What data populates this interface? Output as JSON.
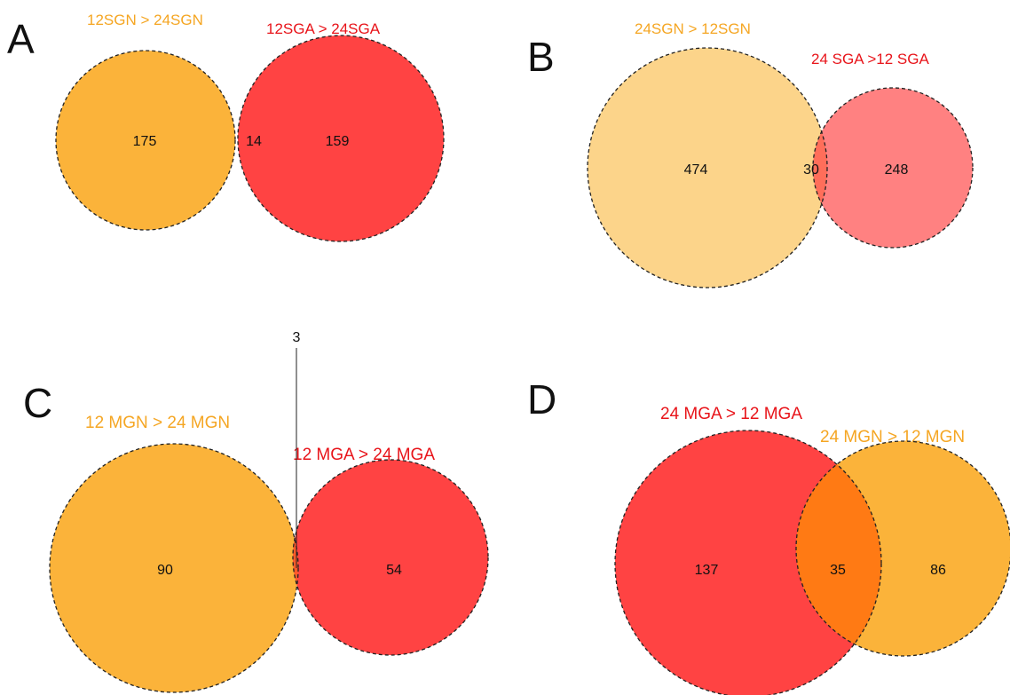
{
  "colors": {
    "orange": "#FBB33A",
    "red": "#FF4343",
    "orange_overlap": "#FF5B2A",
    "light_orange": "#FCD48A",
    "pink": "#FF8181",
    "pink_overlap": "#FF6E5A",
    "label_orange": "#F5A623",
    "label_red": "#E8141A"
  },
  "panels": [
    {
      "letter": "A",
      "set_left": {
        "label": "12SGN > 24SGN",
        "unique": "175"
      },
      "set_right": {
        "label": "12SGA > 24SGA",
        "unique": "159"
      },
      "overlap": "14"
    },
    {
      "letter": "B",
      "set_left": {
        "label": "24SGN > 12SGN",
        "unique": "474"
      },
      "set_right": {
        "label": "24 SGA >12 SGA",
        "unique": "248"
      },
      "overlap": "30"
    },
    {
      "letter": "C",
      "set_left": {
        "label": "12 MGN >  24 MGN",
        "unique": "90"
      },
      "set_right": {
        "label": "12 MGA >  24 MGA",
        "unique": "54"
      },
      "overlap": "3"
    },
    {
      "letter": "D",
      "set_left": {
        "label": "24 MGA >  12 MGA",
        "unique": "137"
      },
      "set_right": {
        "label": "24 MGN > 12 MGN",
        "unique": "86"
      },
      "overlap": "35"
    }
  ]
}
